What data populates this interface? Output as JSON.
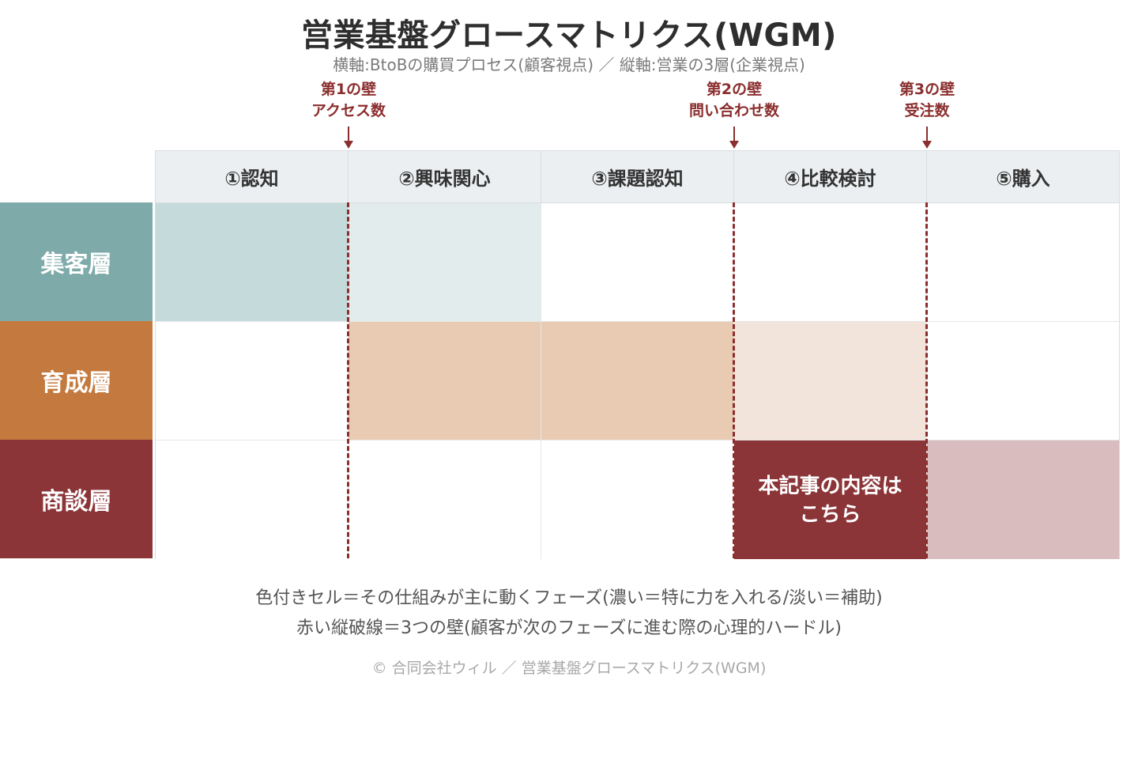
{
  "title": "営業基盤グロースマトリクス(WGM)",
  "subtitle": "横軸:BtoBの購買プロセス(顧客視点) ／ 縦軸:営業の3層(企業視点)",
  "walls": [
    {
      "line1": "第1の壁",
      "line2": "アクセス数"
    },
    {
      "line1": "第2の壁",
      "line2": "問い合わせ数"
    },
    {
      "line1": "第3の壁",
      "line2": "受注数"
    }
  ],
  "phases": [
    "①認知",
    "②興味関心",
    "③課題認知",
    "④比較検討",
    "⑤購入"
  ],
  "layers": [
    {
      "label": "集客層",
      "color": "#7eaaaa"
    },
    {
      "label": "育成層",
      "color": "#c47a3e"
    },
    {
      "label": "商談層",
      "color": "#8b3538"
    }
  ],
  "highlight_cell": {
    "line1": "本記事の内容は",
    "line2": "こちら"
  },
  "notes": {
    "line1": "色付きセル＝その仕組みが主に動くフェーズ(濃い＝特に力を入れる/淡い＝補助)",
    "line2": "赤い縦破線＝3つの壁(顧客が次のフェーズに進む際の心理的ハードル)"
  },
  "copyright": "© 合同会社ウィル ／ 営業基盤グロースマトリクス(WGM)",
  "colors": {
    "wall": "#8b2e2e",
    "teal_strong": "#c5dbdb",
    "teal_light": "#e3ecec",
    "orange_strong": "#e8cbb2",
    "orange_light": "#f2e4da",
    "red_strong": "#8b3538",
    "red_light": "#d9bcbd"
  }
}
